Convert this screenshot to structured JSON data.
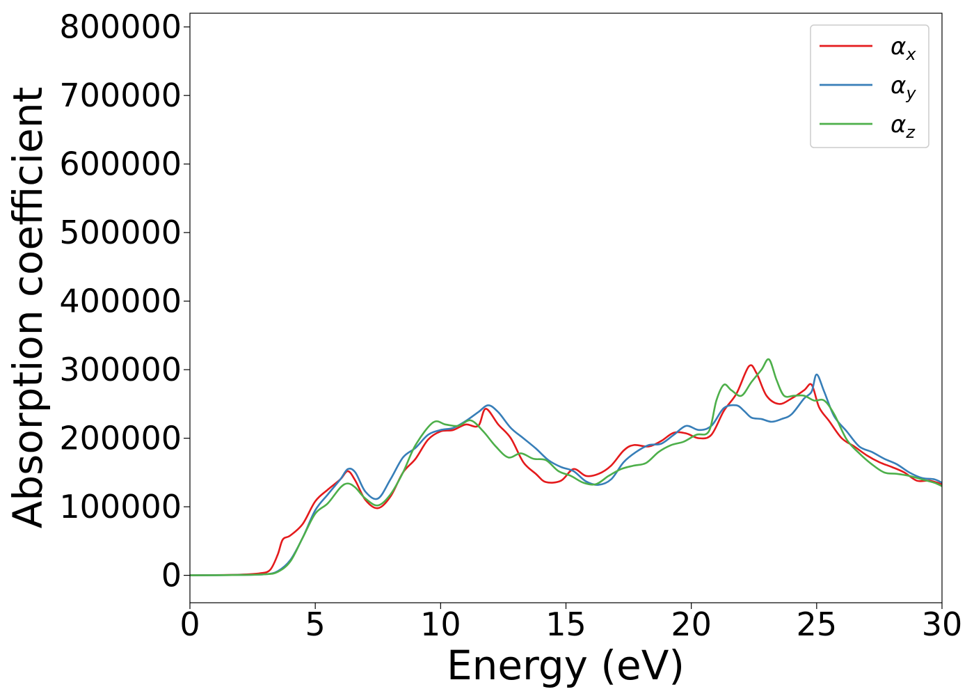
{
  "chart_data": {
    "type": "line",
    "xlabel": "Energy (eV)",
    "ylabel": "Absorption coefficient",
    "xlim": [
      0,
      30
    ],
    "ylim": [
      -40000,
      820000
    ],
    "xticks": [
      0,
      5,
      10,
      15,
      20,
      25,
      30
    ],
    "yticks": [
      0,
      100000,
      200000,
      300000,
      400000,
      500000,
      600000,
      700000,
      800000
    ],
    "grid": false,
    "legend_position": "top-right",
    "series": [
      {
        "name": "α",
        "subscript": "x",
        "color": "#e41a1c",
        "x": [
          0,
          2,
          2.8,
          3.2,
          3.5,
          3.7,
          4.0,
          4.5,
          5.0,
          5.5,
          6.0,
          6.3,
          6.6,
          7.0,
          7.5,
          8.0,
          8.5,
          9.0,
          9.5,
          10.0,
          10.5,
          11.0,
          11.5,
          11.8,
          12.3,
          12.8,
          13.3,
          13.8,
          14.2,
          14.8,
          15.3,
          15.8,
          16.3,
          16.8,
          17.3,
          17.7,
          18.3,
          18.8,
          19.3,
          19.8,
          20.3,
          20.8,
          21.3,
          21.8,
          22.3,
          22.6,
          23.0,
          23.5,
          24.0,
          24.5,
          24.8,
          25.1,
          25.5,
          26.0,
          26.5,
          27.0,
          27.5,
          28.0,
          28.5,
          29.0,
          29.5,
          30.0
        ],
        "values": [
          0,
          1000,
          3000,
          8000,
          30000,
          52000,
          58000,
          75000,
          108000,
          125000,
          140000,
          152000,
          138000,
          110000,
          98000,
          115000,
          150000,
          170000,
          198000,
          210000,
          212000,
          220000,
          218000,
          243000,
          220000,
          200000,
          165000,
          148000,
          136000,
          138000,
          155000,
          145000,
          148000,
          160000,
          182000,
          190000,
          188000,
          196000,
          208000,
          207000,
          200000,
          205000,
          240000,
          265000,
          305000,
          295000,
          262000,
          250000,
          258000,
          270000,
          278000,
          245000,
          225000,
          200000,
          188000,
          175000,
          165000,
          158000,
          150000,
          138000,
          138000,
          133000
        ]
      },
      {
        "name": "α",
        "subscript": "y",
        "color": "#377eb8",
        "x": [
          0,
          2,
          3.0,
          3.5,
          4.0,
          4.5,
          5.0,
          5.5,
          6.0,
          6.3,
          6.6,
          7.0,
          7.5,
          8.0,
          8.5,
          9.0,
          9.5,
          10.0,
          10.5,
          11.0,
          11.5,
          11.9,
          12.3,
          12.8,
          13.3,
          13.8,
          14.3,
          14.8,
          15.3,
          15.8,
          16.3,
          16.8,
          17.3,
          17.8,
          18.3,
          18.8,
          19.3,
          19.8,
          20.3,
          20.8,
          21.3,
          21.8,
          22.1,
          22.4,
          22.8,
          23.2,
          23.6,
          24.0,
          24.5,
          24.8,
          25.0,
          25.3,
          25.7,
          26.2,
          26.7,
          27.2,
          27.7,
          28.2,
          28.7,
          29.2,
          29.7,
          30.0
        ],
        "values": [
          0,
          500,
          1500,
          6000,
          22000,
          55000,
          95000,
          118000,
          140000,
          155000,
          150000,
          122000,
          112000,
          140000,
          172000,
          186000,
          205000,
          212000,
          215000,
          225000,
          238000,
          248000,
          238000,
          215000,
          200000,
          185000,
          168000,
          158000,
          152000,
          137000,
          132000,
          140000,
          165000,
          180000,
          190000,
          192000,
          205000,
          218000,
          212000,
          218000,
          244000,
          248000,
          240000,
          230000,
          228000,
          224000,
          228000,
          235000,
          258000,
          268000,
          293000,
          268000,
          232000,
          210000,
          188000,
          180000,
          170000,
          162000,
          150000,
          142000,
          140000,
          135000
        ]
      },
      {
        "name": "α",
        "subscript": "z",
        "color": "#4daf4a",
        "x": [
          0,
          2,
          3.0,
          3.5,
          4.0,
          4.5,
          5.0,
          5.5,
          6.0,
          6.3,
          6.6,
          7.0,
          7.5,
          8.0,
          8.5,
          9.0,
          9.7,
          10.2,
          10.7,
          11.2,
          11.7,
          12.2,
          12.7,
          13.2,
          13.7,
          14.2,
          14.7,
          15.2,
          15.7,
          16.2,
          16.7,
          17.2,
          17.7,
          18.2,
          18.7,
          19.2,
          19.7,
          20.2,
          20.7,
          21.0,
          21.3,
          21.6,
          22.0,
          22.4,
          22.8,
          23.1,
          23.4,
          23.7,
          24.1,
          24.5,
          24.9,
          25.3,
          25.7,
          26.2,
          26.7,
          27.2,
          27.7,
          28.2,
          28.7,
          29.2,
          29.7,
          30.0
        ],
        "values": [
          0,
          500,
          1500,
          5000,
          20000,
          55000,
          90000,
          105000,
          128000,
          134000,
          128000,
          112000,
          102000,
          118000,
          150000,
          190000,
          223000,
          220000,
          218000,
          226000,
          210000,
          188000,
          172000,
          178000,
          170000,
          168000,
          152000,
          145000,
          135000,
          133000,
          145000,
          155000,
          160000,
          164000,
          180000,
          190000,
          195000,
          205000,
          210000,
          255000,
          278000,
          270000,
          262000,
          282000,
          300000,
          315000,
          285000,
          262000,
          262000,
          262000,
          255000,
          255000,
          235000,
          198000,
          178000,
          162000,
          150000,
          148000,
          145000,
          140000,
          135000,
          130000
        ]
      }
    ]
  }
}
